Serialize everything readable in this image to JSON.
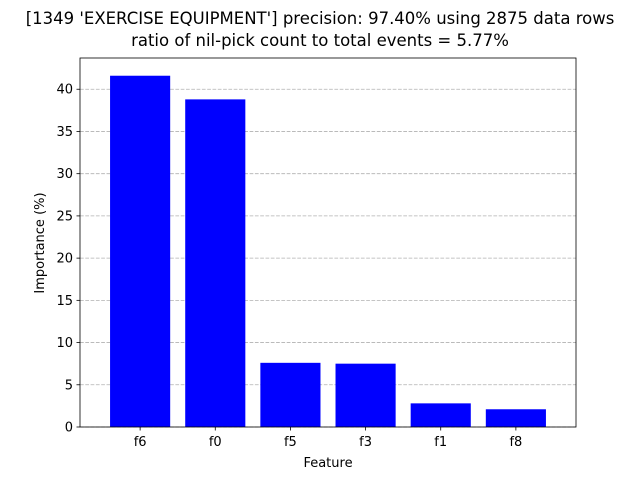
{
  "chart_data": {
    "type": "bar",
    "title_lines": [
      "[1349 'EXERCISE EQUIPMENT'] precision: 97.40% using 2875 data rows",
      "ratio of nil-pick count to total events = 5.77%"
    ],
    "xlabel": "Feature",
    "ylabel": "Importance (%)",
    "categories": [
      "f6",
      "f0",
      "f5",
      "f3",
      "f1",
      "f8"
    ],
    "values": [
      41.6,
      38.8,
      7.6,
      7.5,
      2.8,
      2.1
    ],
    "ylim": [
      0,
      43.7
    ],
    "yticks": [
      0,
      5,
      10,
      15,
      20,
      25,
      30,
      35,
      40
    ],
    "grid": "y-dashed",
    "bar_color": "#0000ff",
    "grid_color": "#b0b0b0"
  }
}
